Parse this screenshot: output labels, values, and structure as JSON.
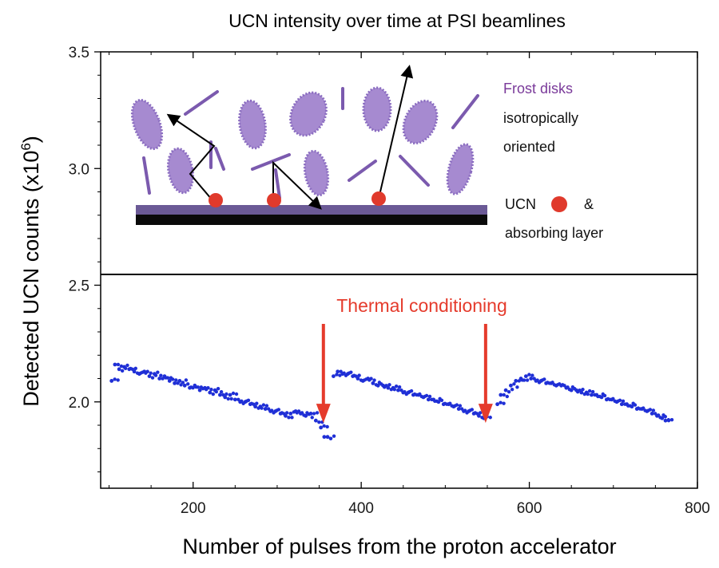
{
  "chart_data": {
    "type": "scatter",
    "title": "UCN intensity over time at PSI beamlines",
    "xlabel": "Number of pulses from the proton accelerator",
    "ylabel": "Detected UCN counts (x10",
    "ylabel_exponent": "6",
    "ylabel_close": ")",
    "xlim": [
      90,
      800
    ],
    "ylim": [
      1.63,
      3.5
    ],
    "x_ticks": [
      200,
      400,
      600,
      800
    ],
    "x_tick_labels": [
      "200",
      "400",
      "600",
      "800"
    ],
    "y_ticks": [
      2.0,
      2.5,
      3.0,
      3.5
    ],
    "y_tick_labels": [
      "2.0",
      "2.5",
      "3.0",
      "3.5"
    ],
    "grid": false,
    "series": [
      {
        "color": "#1f2fd6",
        "segments": [
          {
            "x": [
              103,
              107,
              112,
              118,
              124,
              130,
              136,
              142,
              148,
              154,
              160,
              166,
              172,
              178,
              184,
              190,
              196,
              202,
              208,
              214,
              220,
              226,
              232,
              238,
              244,
              250,
              256,
              262,
              268,
              274,
              280,
              286,
              292,
              298,
              304,
              310,
              316,
              322,
              328,
              334,
              340,
              346,
              352,
              356,
              360
            ],
            "y": [
              2.09,
              2.16,
              2.14,
              2.15,
              2.14,
              2.13,
              2.12,
              2.13,
              2.11,
              2.12,
              2.1,
              2.11,
              2.09,
              2.08,
              2.09,
              2.07,
              2.06,
              2.07,
              2.05,
              2.06,
              2.04,
              2.05,
              2.03,
              2.02,
              2.03,
              2.01,
              2.0,
              2.0,
              1.99,
              1.98,
              1.98,
              1.97,
              1.96,
              1.96,
              1.95,
              1.94,
              1.95,
              1.96,
              1.95,
              1.94,
              1.95,
              1.92,
              1.89,
              1.85,
              1.85
            ]
          },
          {
            "x": [
              367,
              372,
              378,
              384,
              390,
              396,
              402,
              408,
              414,
              420,
              426,
              432,
              438,
              444,
              450,
              456,
              462,
              468,
              474,
              480,
              486,
              492,
              498,
              504,
              510,
              516,
              522,
              528,
              534,
              540,
              546
            ],
            "y": [
              2.11,
              2.13,
              2.12,
              2.12,
              2.11,
              2.1,
              2.09,
              2.1,
              2.08,
              2.07,
              2.07,
              2.06,
              2.06,
              2.05,
              2.04,
              2.04,
              2.03,
              2.03,
              2.02,
              2.01,
              2.01,
              2.0,
              1.99,
              1.99,
              1.98,
              1.97,
              1.96,
              1.96,
              1.95,
              1.94,
              1.93
            ]
          },
          {
            "x": [
              562,
              566,
              572,
              578,
              584,
              590,
              596,
              602,
              608,
              614,
              620,
              626,
              632,
              638,
              644,
              650,
              656,
              662,
              668,
              674,
              680,
              686,
              692,
              698,
              704,
              710,
              716,
              722,
              728,
              734,
              740,
              746,
              752,
              758,
              762
            ],
            "y": [
              1.99,
              2.03,
              2.05,
              2.07,
              2.09,
              2.1,
              2.11,
              2.1,
              2.09,
              2.09,
              2.08,
              2.08,
              2.07,
              2.07,
              2.06,
              2.05,
              2.05,
              2.04,
              2.04,
              2.03,
              2.03,
              2.02,
              2.01,
              2.01,
              2.0,
              1.99,
              1.99,
              1.98,
              1.97,
              1.97,
              1.96,
              1.95,
              1.94,
              1.93,
              1.92
            ]
          }
        ]
      }
    ],
    "annotations": {
      "label": "Thermal conditioning",
      "color": "#e53b2c",
      "arrow_x": [
        355,
        548
      ],
      "arrow_tip_y": [
        1.91,
        1.91
      ]
    },
    "inset": {
      "frost_label": "Frost disks",
      "frost_line2": "isotropically",
      "frost_line3": "oriented",
      "ucn_label": "UCN",
      "amp": "&",
      "absorb_label": "absorbing layer",
      "disk_color": "#a68ad0",
      "label_color": "#7a3a9a",
      "ucn_color": "#e03a2c"
    }
  }
}
